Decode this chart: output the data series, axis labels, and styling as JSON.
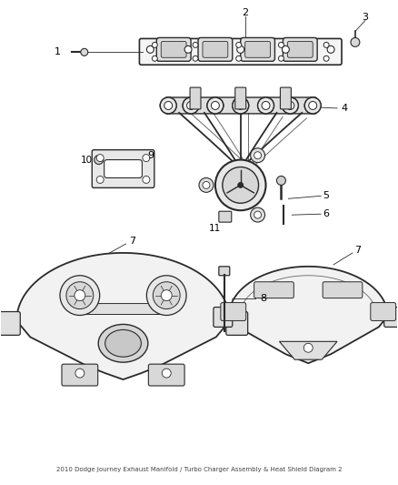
{
  "title": "2010 Dodge Journey Exhaust Manifold / Turbo Charger Assembly & Heat Shield Diagram 2",
  "bg_color": "#ffffff",
  "line_color": "#2a2a2a",
  "text_color": "#000000",
  "fig_width": 4.38,
  "fig_height": 5.33,
  "dpi": 100
}
